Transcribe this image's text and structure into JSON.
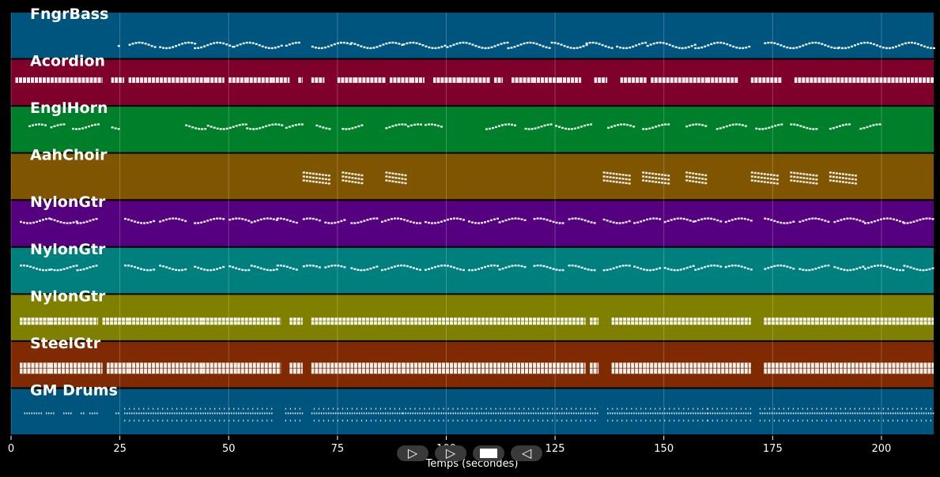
{
  "chart_data": {
    "type": "pianoroll",
    "xlabel": "Temps (secondes)",
    "xlim": [
      0,
      212
    ],
    "xticks": [
      0,
      25,
      50,
      75,
      100,
      125,
      150,
      175,
      200
    ],
    "grid": true,
    "tracks": [
      {
        "name": "FngrBass",
        "color": "#00557f",
        "style": "bass",
        "segments": [
          [
            24.5,
            24.7
          ],
          [
            27,
            33
          ],
          [
            34,
            42
          ],
          [
            42,
            51
          ],
          [
            51,
            62
          ],
          [
            63,
            66
          ],
          [
            69,
            78
          ],
          [
            78,
            90
          ],
          [
            90,
            100
          ],
          [
            100,
            114
          ],
          [
            114,
            124
          ],
          [
            124,
            132
          ],
          [
            132,
            138
          ],
          [
            139,
            146
          ],
          [
            146,
            157
          ],
          [
            157,
            170
          ],
          [
            173,
            190
          ],
          [
            190,
            212
          ]
        ]
      },
      {
        "name": "Acordion",
        "color": "#7f002a",
        "style": "chord",
        "segments": [
          [
            1,
            10
          ],
          [
            10,
            20
          ],
          [
            20,
            21
          ],
          [
            23,
            26
          ],
          [
            27,
            38
          ],
          [
            38,
            45
          ],
          [
            45,
            49
          ],
          [
            50,
            54
          ],
          [
            54,
            60
          ],
          [
            60,
            64
          ],
          [
            66,
            67
          ],
          [
            69,
            72
          ],
          [
            75,
            79
          ],
          [
            79,
            86
          ],
          [
            87,
            92
          ],
          [
            92,
            95
          ],
          [
            97,
            103
          ],
          [
            103,
            110
          ],
          [
            111,
            113
          ],
          [
            115,
            120
          ],
          [
            120,
            126
          ],
          [
            126,
            131
          ],
          [
            134,
            137
          ],
          [
            140,
            146
          ],
          [
            147,
            155
          ],
          [
            155,
            160
          ],
          [
            160,
            167
          ],
          [
            170,
            177
          ],
          [
            180,
            188
          ],
          [
            188,
            196
          ],
          [
            196,
            205
          ],
          [
            205,
            212
          ]
        ]
      },
      {
        "name": "EnglHorn",
        "color": "#007f2a",
        "style": "melody",
        "segments": [
          [
            4,
            8
          ],
          [
            9,
            12
          ],
          [
            14,
            20
          ],
          [
            23,
            25
          ],
          [
            40,
            45
          ],
          [
            45,
            54
          ],
          [
            54,
            62
          ],
          [
            63,
            67
          ],
          [
            70,
            73
          ],
          [
            76,
            81
          ],
          [
            86,
            91
          ],
          [
            91,
            94
          ],
          [
            95,
            99
          ],
          [
            109,
            116
          ],
          [
            118,
            124
          ],
          [
            125,
            133
          ],
          [
            137,
            143
          ],
          [
            145,
            151
          ],
          [
            155,
            160
          ],
          [
            162,
            169
          ],
          [
            171,
            177
          ],
          [
            179,
            185
          ],
          [
            188,
            193
          ],
          [
            195,
            200
          ]
        ]
      },
      {
        "name": "AahChoir",
        "color": "#7f5500",
        "style": "choir",
        "segments": [
          [
            67,
            73
          ],
          [
            76,
            81
          ],
          [
            86,
            91
          ],
          [
            136,
            142
          ],
          [
            145,
            151
          ],
          [
            155,
            160
          ],
          [
            170,
            176
          ],
          [
            179,
            185
          ],
          [
            188,
            194
          ]
        ]
      },
      {
        "name": "NylonGtr",
        "color": "#55007f",
        "style": "melody",
        "segments": [
          [
            2,
            9
          ],
          [
            9,
            15
          ],
          [
            15,
            20
          ],
          [
            26,
            33
          ],
          [
            34,
            40
          ],
          [
            42,
            49
          ],
          [
            50,
            55
          ],
          [
            55,
            61
          ],
          [
            61,
            66
          ],
          [
            67,
            71
          ],
          [
            72,
            77
          ],
          [
            78,
            84
          ],
          [
            85,
            94
          ],
          [
            95,
            104
          ],
          [
            105,
            112
          ],
          [
            112,
            118
          ],
          [
            120,
            127
          ],
          [
            128,
            134
          ],
          [
            136,
            142
          ],
          [
            143,
            149
          ],
          [
            150,
            157
          ],
          [
            157,
            163
          ],
          [
            164,
            170
          ],
          [
            173,
            180
          ],
          [
            181,
            188
          ],
          [
            189,
            196
          ],
          [
            196,
            205
          ],
          [
            205,
            212
          ]
        ]
      },
      {
        "name": "NylonGtr",
        "color": "#007f7f",
        "style": "melody",
        "segments": [
          [
            2,
            9
          ],
          [
            9,
            15
          ],
          [
            15,
            20
          ],
          [
            26,
            33
          ],
          [
            34,
            40
          ],
          [
            42,
            49
          ],
          [
            50,
            55
          ],
          [
            55,
            61
          ],
          [
            61,
            66
          ],
          [
            67,
            71
          ],
          [
            72,
            77
          ],
          [
            78,
            84
          ],
          [
            85,
            94
          ],
          [
            95,
            104
          ],
          [
            105,
            112
          ],
          [
            112,
            118
          ],
          [
            120,
            127
          ],
          [
            128,
            134
          ],
          [
            136,
            142
          ],
          [
            143,
            149
          ],
          [
            150,
            157
          ],
          [
            157,
            163
          ],
          [
            164,
            170
          ],
          [
            173,
            180
          ],
          [
            181,
            188
          ],
          [
            189,
            196
          ],
          [
            196,
            205
          ],
          [
            205,
            212
          ]
        ]
      },
      {
        "name": "NylonGtr",
        "color": "#7f7f00",
        "style": "strum",
        "segments": [
          [
            2,
            9
          ],
          [
            9,
            20
          ],
          [
            21,
            27
          ],
          [
            27,
            37
          ],
          [
            37,
            44
          ],
          [
            44,
            52
          ],
          [
            52,
            62
          ],
          [
            64,
            67
          ],
          [
            69,
            78
          ],
          [
            78,
            90
          ],
          [
            90,
            100
          ],
          [
            100,
            110
          ],
          [
            110,
            120
          ],
          [
            120,
            132
          ],
          [
            133,
            135
          ],
          [
            138,
            146
          ],
          [
            146,
            156
          ],
          [
            156,
            165
          ],
          [
            165,
            170
          ],
          [
            173,
            185
          ],
          [
            185,
            198
          ],
          [
            198,
            212
          ]
        ]
      },
      {
        "name": "SteelGtr",
        "color": "#7f2a00",
        "style": "strum",
        "segments": [
          [
            2,
            9
          ],
          [
            9,
            21
          ],
          [
            22,
            27
          ],
          [
            27,
            37
          ],
          [
            37,
            44
          ],
          [
            44,
            52
          ],
          [
            52,
            62
          ],
          [
            64,
            67
          ],
          [
            69,
            78
          ],
          [
            78,
            90
          ],
          [
            90,
            100
          ],
          [
            100,
            110
          ],
          [
            110,
            120
          ],
          [
            120,
            132
          ],
          [
            133,
            135
          ],
          [
            138,
            146
          ],
          [
            146,
            156
          ],
          [
            156,
            165
          ],
          [
            165,
            170
          ],
          [
            173,
            185
          ],
          [
            185,
            198
          ],
          [
            198,
            212
          ]
        ]
      },
      {
        "name": "GM Drums",
        "color": "#00557f",
        "style": "drums",
        "segments": [
          [
            3,
            7
          ],
          [
            8,
            10
          ],
          [
            12,
            14
          ],
          [
            16,
            17
          ],
          [
            18,
            20
          ],
          [
            24,
            25
          ],
          [
            26,
            60
          ],
          [
            63,
            67
          ],
          [
            69,
            90
          ],
          [
            90,
            115
          ],
          [
            115,
            135
          ],
          [
            137,
            160
          ],
          [
            160,
            170
          ],
          [
            172,
            212
          ]
        ]
      }
    ]
  },
  "controls": {
    "play_label": "▷",
    "forward_label": "▷",
    "rewind_label": "◁"
  }
}
